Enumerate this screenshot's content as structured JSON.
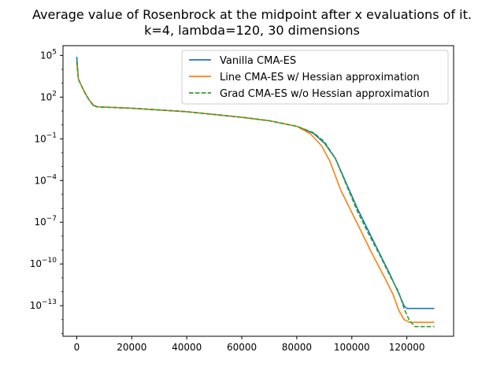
{
  "chart_data": {
    "type": "line",
    "title_line1": "Average value of Rosenbrock at the midpoint after x evaluations of it.",
    "title_line2": "k=4, lambda=120, 30 dimensions",
    "xlabel": "",
    "ylabel": "",
    "xlim": [
      -5000,
      137000
    ],
    "ylim_log10": [
      -15.2,
      5.7
    ],
    "y_scale": "log",
    "grid": false,
    "legend_position": "top-right",
    "x_ticks": [
      0,
      20000,
      40000,
      60000,
      80000,
      100000,
      120000
    ],
    "x_tick_labels": [
      "0",
      "20000",
      "40000",
      "60000",
      "80000",
      "100000",
      "120000"
    ],
    "y_ticks_exp": [
      5,
      2,
      -1,
      -4,
      -7,
      -10,
      -13
    ],
    "y_tick_labels": [
      {
        "base": "10",
        "exp": "5"
      },
      {
        "base": "10",
        "exp": "2"
      },
      {
        "base": "10",
        "exp": "−1"
      },
      {
        "base": "10",
        "exp": "−4"
      },
      {
        "base": "10",
        "exp": "−7"
      },
      {
        "base": "10",
        "exp": "−10"
      },
      {
        "base": "10",
        "exp": "−13"
      }
    ],
    "series": [
      {
        "name": "Vanilla CMA-ES",
        "color": "#1f77b4",
        "dash": "solid",
        "points": [
          [
            0,
            4.9
          ],
          [
            600,
            3.3
          ],
          [
            1500,
            2.9
          ],
          [
            3000,
            2.3
          ],
          [
            4500,
            1.8
          ],
          [
            6000,
            1.4
          ],
          [
            7500,
            1.3
          ],
          [
            20000,
            1.2
          ],
          [
            40000,
            0.95
          ],
          [
            60000,
            0.55
          ],
          [
            70000,
            0.3
          ],
          [
            80000,
            -0.1
          ],
          [
            86000,
            -0.6
          ],
          [
            90000,
            -1.3
          ],
          [
            94000,
            -2.4
          ],
          [
            98000,
            -4.2
          ],
          [
            102000,
            -6.0
          ],
          [
            106000,
            -7.6
          ],
          [
            110000,
            -9.2
          ],
          [
            114000,
            -10.8
          ],
          [
            117000,
            -12.1
          ],
          [
            119000,
            -13.0
          ],
          [
            120000,
            -13.2
          ],
          [
            130000,
            -13.2
          ]
        ]
      },
      {
        "name": "Line CMA-ES w/ Hessian approximation",
        "color": "#ff7f0e",
        "dash": "solid",
        "points": [
          [
            0,
            4.5
          ],
          [
            600,
            3.3
          ],
          [
            1500,
            2.9
          ],
          [
            3000,
            2.3
          ],
          [
            4500,
            1.8
          ],
          [
            6000,
            1.45
          ],
          [
            7500,
            1.3
          ],
          [
            20000,
            1.2
          ],
          [
            40000,
            0.95
          ],
          [
            60000,
            0.55
          ],
          [
            70000,
            0.3
          ],
          [
            80000,
            -0.1
          ],
          [
            85000,
            -0.65
          ],
          [
            89000,
            -1.5
          ],
          [
            92000,
            -2.6
          ],
          [
            96000,
            -4.7
          ],
          [
            100000,
            -6.3
          ],
          [
            104000,
            -7.9
          ],
          [
            108000,
            -9.5
          ],
          [
            112000,
            -11.0
          ],
          [
            115000,
            -12.2
          ],
          [
            117000,
            -13.3
          ],
          [
            119000,
            -14.0
          ],
          [
            121000,
            -14.2
          ],
          [
            130000,
            -14.2
          ]
        ]
      },
      {
        "name": "Grad CMA-ES w/o Hessian approximation",
        "color": "#2ca02c",
        "dash": "dashed",
        "points": [
          [
            0,
            4.6
          ],
          [
            600,
            3.3
          ],
          [
            1500,
            2.9
          ],
          [
            3000,
            2.3
          ],
          [
            4500,
            1.8
          ],
          [
            6000,
            1.4
          ],
          [
            7500,
            1.3
          ],
          [
            20000,
            1.2
          ],
          [
            40000,
            0.95
          ],
          [
            60000,
            0.55
          ],
          [
            70000,
            0.3
          ],
          [
            80000,
            -0.1
          ],
          [
            86000,
            -0.55
          ],
          [
            90000,
            -1.2
          ],
          [
            94000,
            -2.4
          ],
          [
            98000,
            -4.3
          ],
          [
            102000,
            -6.2
          ],
          [
            106000,
            -7.8
          ],
          [
            110000,
            -9.3
          ],
          [
            114000,
            -10.9
          ],
          [
            117000,
            -12.0
          ],
          [
            119000,
            -13.2
          ],
          [
            121000,
            -14.1
          ],
          [
            123000,
            -14.5
          ],
          [
            130000,
            -14.5
          ]
        ]
      }
    ]
  }
}
